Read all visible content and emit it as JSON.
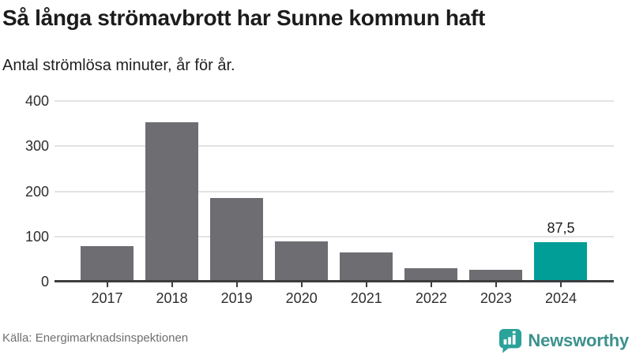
{
  "header": {
    "title": "Så långa strömavbrott har Sunne kommun haft",
    "subtitle": "Antal strömlösa minuter, år för år."
  },
  "chart_data": {
    "type": "bar",
    "categories": [
      "2017",
      "2018",
      "2019",
      "2020",
      "2021",
      "2022",
      "2023",
      "2024"
    ],
    "values": [
      78,
      353,
      186,
      89,
      65,
      30,
      27,
      87.5
    ],
    "highlight_index": 7,
    "data_labels": {
      "7": "87,5"
    },
    "title": "Så långa strömavbrott har Sunne kommun haft",
    "subtitle": "Antal strömlösa minuter, år för år.",
    "xlabel": "",
    "ylabel": "",
    "ylim": [
      0,
      400
    ],
    "yticks": [
      0,
      100,
      200,
      300,
      400
    ],
    "grid": "horizontal-only",
    "legend": "none",
    "bar_color": "#6d6d72",
    "highlight_color": "#009e97",
    "gridline_color": "#e3e3e3",
    "axis_color": "#3d3d40"
  },
  "footer": {
    "source": "Källa: Energimarknadsinspektionen",
    "brand": "Newsworthy",
    "brand_color": "#3d918d",
    "brand_icon_color": "#2ba29a"
  }
}
